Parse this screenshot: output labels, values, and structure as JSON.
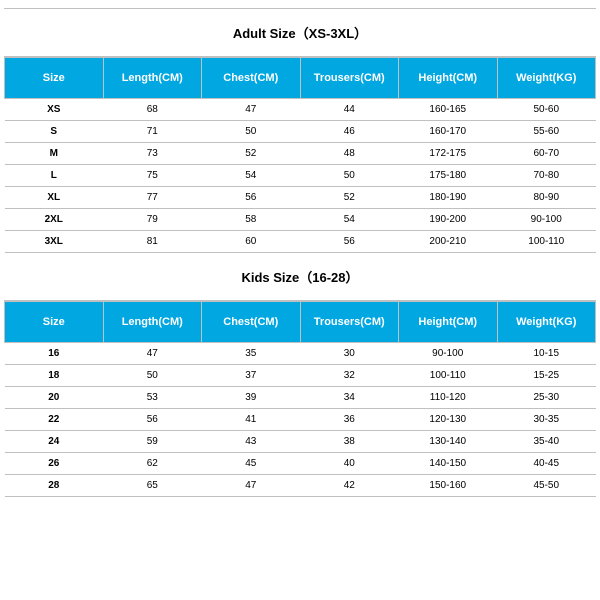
{
  "adult": {
    "title": "Adult Size（XS-3XL）",
    "columns": [
      "Size",
      "Length(CM)",
      "Chest(CM)",
      "Trousers(CM)",
      "Height(CM)",
      "Weight(KG)"
    ],
    "rows": [
      [
        "XS",
        "68",
        "47",
        "44",
        "160-165",
        "50-60"
      ],
      [
        "S",
        "71",
        "50",
        "46",
        "160-170",
        "55-60"
      ],
      [
        "M",
        "73",
        "52",
        "48",
        "172-175",
        "60-70"
      ],
      [
        "L",
        "75",
        "54",
        "50",
        "175-180",
        "70-80"
      ],
      [
        "XL",
        "77",
        "56",
        "52",
        "180-190",
        "80-90"
      ],
      [
        "2XL",
        "79",
        "58",
        "54",
        "190-200",
        "90-100"
      ],
      [
        "3XL",
        "81",
        "60",
        "56",
        "200-210",
        "100-110"
      ]
    ]
  },
  "kids": {
    "title": "Kids Size（16-28）",
    "columns": [
      "Size",
      "Length(CM)",
      "Chest(CM)",
      "Trousers(CM)",
      "Height(CM)",
      "Weight(KG)"
    ],
    "rows": [
      [
        "16",
        "47",
        "35",
        "30",
        "90-100",
        "10-15"
      ],
      [
        "18",
        "50",
        "37",
        "32",
        "100-110",
        "15-25"
      ],
      [
        "20",
        "53",
        "39",
        "34",
        "110-120",
        "25-30"
      ],
      [
        "22",
        "56",
        "41",
        "36",
        "120-130",
        "30-35"
      ],
      [
        "24",
        "59",
        "43",
        "38",
        "130-140",
        "35-40"
      ],
      [
        "26",
        "62",
        "45",
        "40",
        "140-150",
        "40-45"
      ],
      [
        "28",
        "65",
        "47",
        "42",
        "150-160",
        "45-50"
      ]
    ]
  },
  "style": {
    "header_bg": "#00a7e1",
    "header_text": "#ffffff",
    "border_color": "#c0c0c0",
    "body_text": "#000000",
    "title_fontsize": 13,
    "header_fontsize": 11,
    "cell_fontsize": 10
  }
}
